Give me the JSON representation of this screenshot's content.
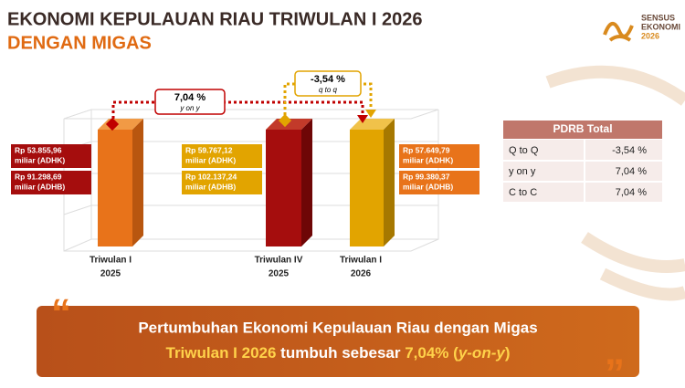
{
  "header": {
    "title": "EKONOMI KEPULAUAN RIAU TRIWULAN I 2026",
    "subtitle": "DENGAN MIGAS"
  },
  "logo": [
    "SENSUS",
    "EKONOMI",
    "2026"
  ],
  "bars": [
    {
      "label": [
        "Triwulan I",
        "2025"
      ],
      "adhk": [
        "Rp 53.855,96",
        "miliar (ADHK)"
      ],
      "adhb": [
        "Rp 91.298,69",
        "miliar (ADHB)"
      ]
    },
    {
      "label": [
        "Triwulan IV",
        "2025"
      ],
      "adhk": [
        "Rp 59.767,12",
        "miliar (ADHK)"
      ],
      "adhb": [
        "Rp 102.137,24",
        "miliar (ADHB)"
      ]
    },
    {
      "label": [
        "Triwulan I",
        "2026"
      ],
      "adhk": [
        "Rp 57.649,79",
        "miliar (ADHK)"
      ],
      "adhb": [
        "Rp 99.380,37",
        "miliar (ADHB)"
      ]
    }
  ],
  "callouts": {
    "yoy": {
      "value": "7,04 %",
      "note": "y on y"
    },
    "qtq": {
      "value": "-3,54 %",
      "note": "q to q"
    }
  },
  "table": {
    "header": "PDRB Total",
    "rows": [
      [
        "Q to Q",
        "-3,54 %"
      ],
      [
        "y on y",
        "7,04 %"
      ],
      [
        "C to C",
        "7,04 %"
      ]
    ]
  },
  "footer": {
    "line1": "Pertumbuhan Ekonomi Kepulauan Riau dengan Migas",
    "highlight1": "Triwulan I 2026",
    "mid": " tumbuh sebesar ",
    "highlight2": "7,04%",
    "open": " (",
    "italic": "y-on-y",
    "close": ")"
  },
  "quotes": [
    "“",
    "”"
  ]
}
